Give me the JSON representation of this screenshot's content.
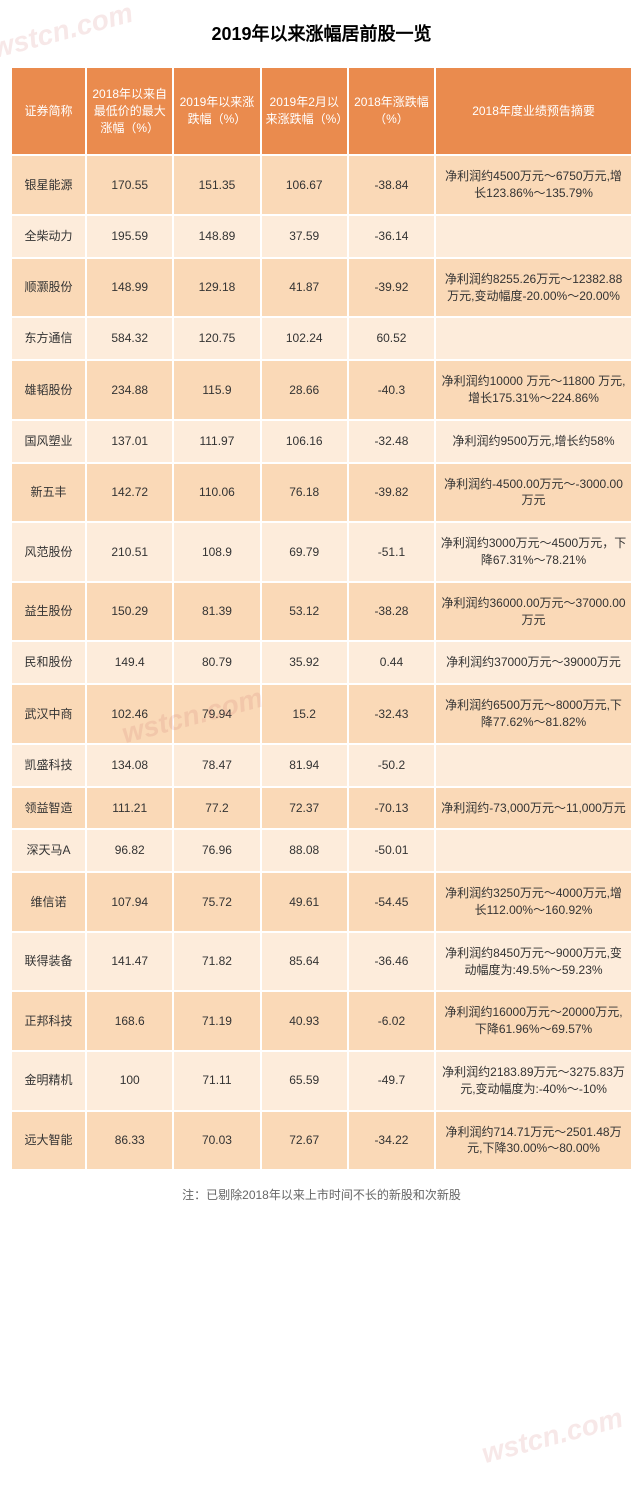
{
  "title": "2019年以来涨幅居前股一览",
  "watermark_text": "wstcn.com",
  "columns": [
    "证券简称",
    "2018年以来自最低价的最大涨幅（%）",
    "2019年以来涨跌幅（%）",
    "2019年2月以来涨跌幅（%）",
    "2018年涨跌幅（%）",
    "2018年度业绩预告摘要"
  ],
  "rows": [
    {
      "name": "银星能源",
      "c1": "170.55",
      "c2": "151.35",
      "c3": "106.67",
      "c4": "-38.84",
      "summary": "净利润约4500万元～6750万元,增长123.86%～135.79%"
    },
    {
      "name": "全柴动力",
      "c1": "195.59",
      "c2": "148.89",
      "c3": "37.59",
      "c4": "-36.14",
      "summary": ""
    },
    {
      "name": "顺灏股份",
      "c1": "148.99",
      "c2": "129.18",
      "c3": "41.87",
      "c4": "-39.92",
      "summary": "净利润约8255.26万元～12382.88万元,变动幅度-20.00%～20.00%"
    },
    {
      "name": "东方通信",
      "c1": "584.32",
      "c2": "120.75",
      "c3": "102.24",
      "c4": "60.52",
      "summary": ""
    },
    {
      "name": "雄韬股份",
      "c1": "234.88",
      "c2": "115.9",
      "c3": "28.66",
      "c4": "-40.3",
      "summary": "净利润约10000 万元～11800 万元,增长175.31%～224.86%"
    },
    {
      "name": "国风塑业",
      "c1": "137.01",
      "c2": "111.97",
      "c3": "106.16",
      "c4": "-32.48",
      "summary": "净利润约9500万元,增长约58%"
    },
    {
      "name": "新五丰",
      "c1": "142.72",
      "c2": "110.06",
      "c3": "76.18",
      "c4": "-39.82",
      "summary": "净利润约-4500.00万元～-3000.00万元"
    },
    {
      "name": "风范股份",
      "c1": "210.51",
      "c2": "108.9",
      "c3": "69.79",
      "c4": "-51.1",
      "summary": "净利润约3000万元～4500万元，下降67.31%～78.21%"
    },
    {
      "name": "益生股份",
      "c1": "150.29",
      "c2": "81.39",
      "c3": "53.12",
      "c4": "-38.28",
      "summary": "净利润约36000.00万元～37000.00万元"
    },
    {
      "name": "民和股份",
      "c1": "149.4",
      "c2": "80.79",
      "c3": "35.92",
      "c4": "0.44",
      "summary": "净利润约37000万元～39000万元"
    },
    {
      "name": "武汉中商",
      "c1": "102.46",
      "c2": "79.94",
      "c3": "15.2",
      "c4": "-32.43",
      "summary": "净利润约6500万元～8000万元,下降77.62%～81.82%"
    },
    {
      "name": "凯盛科技",
      "c1": "134.08",
      "c2": "78.47",
      "c3": "81.94",
      "c4": "-50.2",
      "summary": ""
    },
    {
      "name": "领益智造",
      "c1": "111.21",
      "c2": "77.2",
      "c3": "72.37",
      "c4": "-70.13",
      "summary": "净利润约-73,000万元～11,000万元"
    },
    {
      "name": "深天马A",
      "c1": "96.82",
      "c2": "76.96",
      "c3": "88.08",
      "c4": "-50.01",
      "summary": ""
    },
    {
      "name": "维信诺",
      "c1": "107.94",
      "c2": "75.72",
      "c3": "49.61",
      "c4": "-54.45",
      "summary": "净利润约3250万元～4000万元,增长112.00%～160.92%"
    },
    {
      "name": "联得装备",
      "c1": "141.47",
      "c2": "71.82",
      "c3": "85.64",
      "c4": "-36.46",
      "summary": "净利润约8450万元～9000万元,变动幅度为:49.5%～59.23%"
    },
    {
      "name": "正邦科技",
      "c1": "168.6",
      "c2": "71.19",
      "c3": "40.93",
      "c4": "-6.02",
      "summary": "净利润约16000万元～20000万元,下降61.96%～69.57%"
    },
    {
      "name": "金明精机",
      "c1": "100",
      "c2": "71.11",
      "c3": "65.59",
      "c4": "-49.7",
      "summary": "净利润约2183.89万元～3275.83万元,变动幅度为:-40%～-10%"
    },
    {
      "name": "远大智能",
      "c1": "86.33",
      "c2": "70.03",
      "c3": "72.67",
      "c4": "-34.22",
      "summary": "净利润约714.71万元～2501.48万元,下降30.00%～80.00%"
    }
  ],
  "footnote": "注：已剔除2018年以来上市时间不长的新股和次新股",
  "styles": {
    "header_bg": "#ea8b4e",
    "header_text": "#ffffff",
    "row_odd_bg": "#fad9b7",
    "row_even_bg": "#fdecdb",
    "page_bg": "#ffffff",
    "title_fontsize": 18,
    "cell_fontsize": 12,
    "watermark_color": "rgba(200,100,100,0.15)"
  }
}
